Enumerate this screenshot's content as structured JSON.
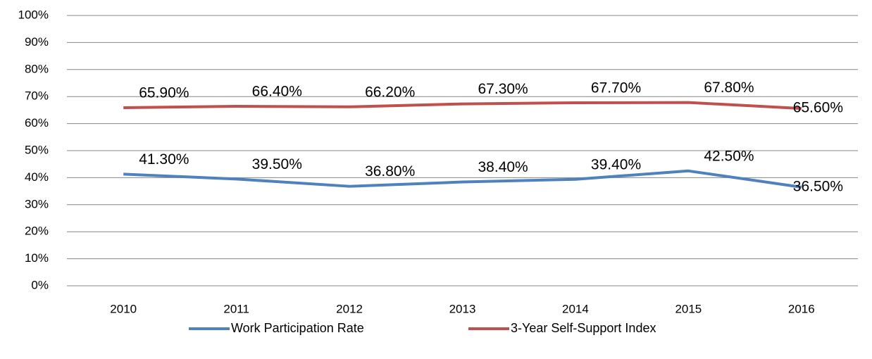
{
  "chart_data": {
    "type": "line",
    "categories": [
      "2010",
      "2011",
      "2012",
      "2013",
      "2014",
      "2015",
      "2016"
    ],
    "series": [
      {
        "name": "Work Participation Rate",
        "color": "#4f81bd",
        "values": [
          41.3,
          39.5,
          36.8,
          38.4,
          39.4,
          42.5,
          36.5
        ],
        "value_labels": [
          "41.30%",
          "39.50%",
          "36.80%",
          "38.40%",
          "39.40%",
          "42.50%",
          "36.50%"
        ]
      },
      {
        "name": "3-Year Self-Support Index",
        "color": "#c0504d",
        "values": [
          65.9,
          66.4,
          66.2,
          67.3,
          67.7,
          67.8,
          65.6
        ],
        "value_labels": [
          "65.90%",
          "66.40%",
          "66.20%",
          "67.30%",
          "67.70%",
          "67.80%",
          "65.60%"
        ]
      }
    ],
    "ylim": [
      0,
      100
    ],
    "yticks": [
      {
        "value": 0,
        "label": "0%"
      },
      {
        "value": 10,
        "label": "10%"
      },
      {
        "value": 20,
        "label": "20%"
      },
      {
        "value": 30,
        "label": "30%"
      },
      {
        "value": 40,
        "label": "40%"
      },
      {
        "value": 50,
        "label": "50%"
      },
      {
        "value": 60,
        "label": "60%"
      },
      {
        "value": 70,
        "label": "70%"
      },
      {
        "value": 80,
        "label": "80%"
      },
      {
        "value": 90,
        "label": "90%"
      },
      {
        "value": 100,
        "label": "100%"
      }
    ],
    "grid": true,
    "legend": "bottom"
  }
}
